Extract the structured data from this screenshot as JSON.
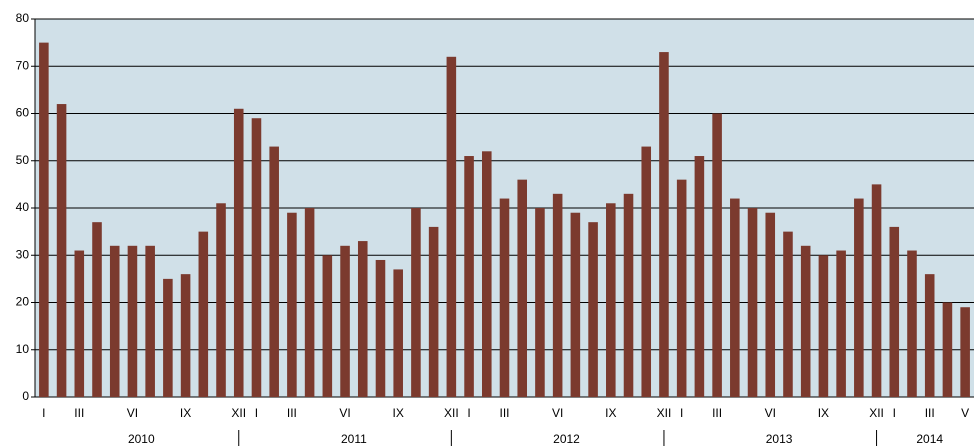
{
  "chart_data": {
    "type": "bar",
    "categories": [
      "I",
      null,
      "III",
      null,
      null,
      "VI",
      null,
      null,
      "IX",
      null,
      null,
      "XII",
      "I",
      null,
      "III",
      null,
      null,
      "VI",
      null,
      null,
      "IX",
      null,
      null,
      "XII",
      "I",
      null,
      "III",
      null,
      null,
      "VI",
      null,
      null,
      "IX",
      null,
      null,
      "XII",
      "I",
      null,
      "III",
      null,
      null,
      "VI",
      null,
      null,
      "IX",
      null,
      null,
      "XII",
      "I",
      null,
      "III",
      null,
      "V"
    ],
    "values": [
      75,
      62,
      31,
      37,
      32,
      32,
      32,
      25,
      26,
      35,
      41,
      61,
      59,
      53,
      39,
      40,
      30,
      32,
      33,
      29,
      27,
      40,
      36,
      72,
      51,
      52,
      42,
      46,
      40,
      43,
      39,
      37,
      41,
      43,
      53,
      73,
      46,
      51,
      60,
      42,
      40,
      39,
      35,
      32,
      30,
      31,
      42,
      45,
      36,
      31,
      26,
      20,
      19
    ],
    "groups": [
      {
        "label": "2010",
        "months": 12
      },
      {
        "label": "2011",
        "months": 12
      },
      {
        "label": "2012",
        "months": 12
      },
      {
        "label": "2013",
        "months": 12
      },
      {
        "label": "2014",
        "months": 5
      }
    ],
    "color": "#7b3a2e",
    "background": "#d0e0e8",
    "ylim": [
      0,
      80
    ],
    "yticks": [
      0,
      10,
      20,
      30,
      40,
      50,
      60,
      70,
      80
    ],
    "grid": true
  }
}
